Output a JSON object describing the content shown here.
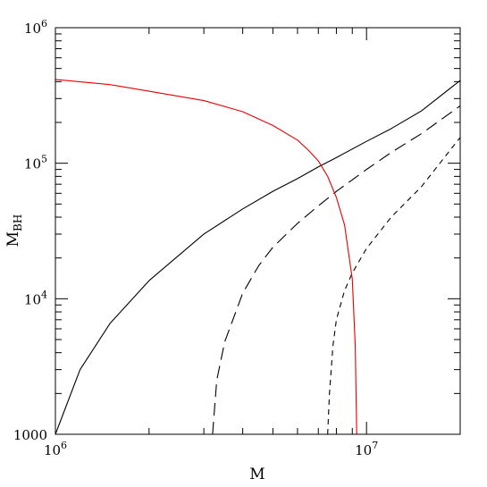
{
  "chart_data": {
    "type": "line",
    "title": "",
    "xlabel": "M",
    "ylabel": "M",
    "ylabel_subscript": "BH",
    "xscale": "log",
    "yscale": "log",
    "xlim": [
      1000000,
      20000000
    ],
    "ylim": [
      1000,
      1000000
    ],
    "grid": false,
    "legend": "none",
    "x_tick_labels": [
      {
        "value": 1000000,
        "base": "10",
        "exp": "6"
      },
      {
        "value": 10000000,
        "base": "10",
        "exp": "7"
      }
    ],
    "y_tick_labels": [
      {
        "value": 1000,
        "base": "1000",
        "exp": ""
      },
      {
        "value": 10000,
        "base": "10",
        "exp": "4"
      },
      {
        "value": 100000,
        "base": "10",
        "exp": "5"
      },
      {
        "value": 1000000,
        "base": "10",
        "exp": "6"
      }
    ],
    "series": [
      {
        "color": "#000000",
        "dash": "solid",
        "x": [
          1000000,
          1200000,
          1500000,
          2000000,
          3000000,
          4000000,
          5000000,
          6000000,
          7000000,
          8000000,
          10000000,
          12000000,
          15000000,
          20000000
        ],
        "y": [
          1000,
          3000,
          6600,
          13600,
          30000,
          46000,
          62000,
          77000,
          94000,
          110000,
          145000,
          180000,
          243000,
          408000
        ]
      },
      {
        "color": "#000000",
        "dash": "long-dash",
        "x": [
          3200000,
          3300000,
          3500000,
          4000000,
          4500000,
          5000000,
          6000000,
          7000000,
          8000000,
          10000000,
          12000000,
          15000000,
          20000000
        ],
        "y": [
          1000,
          2500,
          4800,
          11000,
          17500,
          24000,
          36000,
          48500,
          62000,
          90000,
          120000,
          165000,
          265000
        ]
      },
      {
        "color": "#000000",
        "dash": "short-dash",
        "x": [
          7500000,
          7600000,
          7800000,
          8000000,
          8500000,
          9000000,
          10000000,
          12000000,
          15000000,
          20000000
        ],
        "y": [
          1000,
          2000,
          4500,
          7000,
          11500,
          15500,
          23500,
          40000,
          67000,
          155000
        ]
      },
      {
        "color": "#e60000",
        "dash": "solid",
        "x": [
          1000000,
          1500000,
          2000000,
          3000000,
          4000000,
          5000000,
          6000000,
          6500000,
          7000000,
          7500000,
          8000000,
          8500000,
          9000000,
          9200000,
          9300000
        ],
        "y": [
          415000,
          380000,
          340000,
          290000,
          240000,
          190000,
          148000,
          125000,
          104000,
          80000,
          56000,
          35000,
          14000,
          4500,
          1000
        ]
      }
    ]
  }
}
